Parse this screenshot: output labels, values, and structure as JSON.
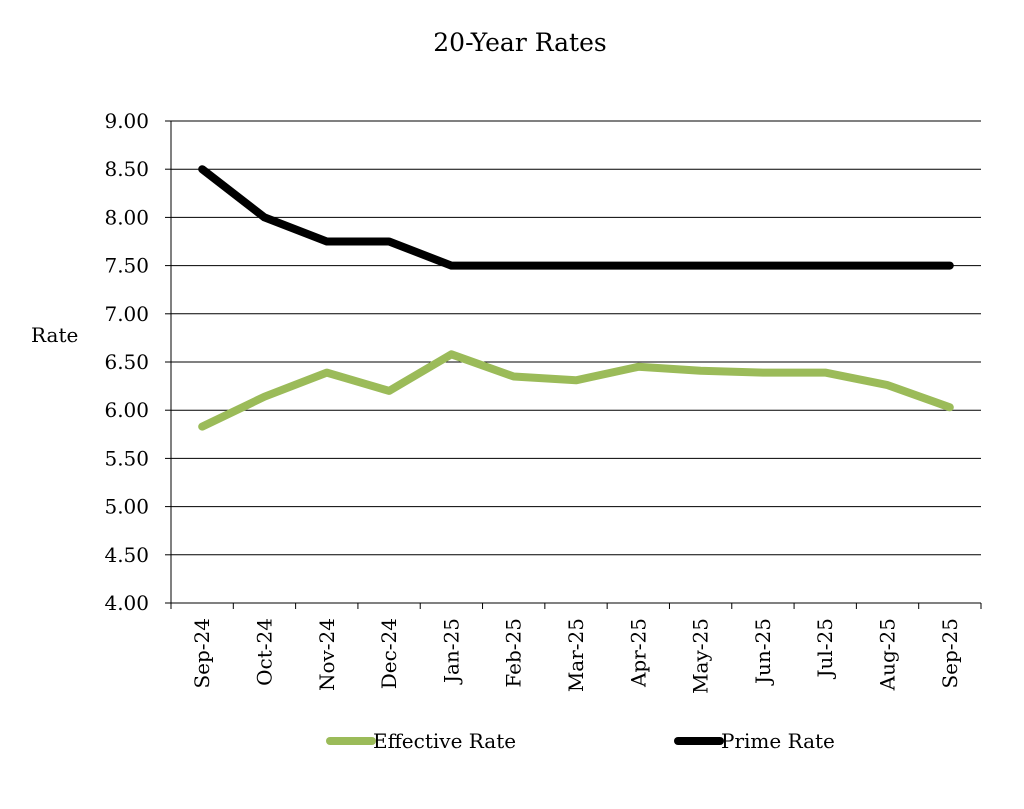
{
  "chart_data": {
    "type": "line",
    "title": "20-Year Rates",
    "xlabel": "",
    "ylabel": "Rate",
    "categories": [
      "Sep-24",
      "Oct-24",
      "Nov-24",
      "Dec-24",
      "Jan-25",
      "Feb-25",
      "Mar-25",
      "Apr-25",
      "May-25",
      "Jun-25",
      "Jul-25",
      "Aug-25",
      "Sep-25"
    ],
    "ylim": [
      4.0,
      9.0
    ],
    "yticks": [
      "4.00",
      "4.50",
      "5.00",
      "5.50",
      "6.00",
      "6.50",
      "7.00",
      "7.50",
      "8.00",
      "8.50",
      "9.00"
    ],
    "grid": true,
    "legend_position": "bottom",
    "series": [
      {
        "name": "Effective Rate",
        "color": "#9BBB59",
        "values": [
          5.83,
          6.14,
          6.39,
          6.2,
          6.58,
          6.35,
          6.31,
          6.45,
          6.41,
          6.39,
          6.39,
          6.26,
          6.03
        ]
      },
      {
        "name": "Prime Rate",
        "color": "#000000",
        "values": [
          8.5,
          8.0,
          7.75,
          7.75,
          7.5,
          7.5,
          7.5,
          7.5,
          7.5,
          7.5,
          7.5,
          7.5,
          7.5
        ]
      }
    ]
  }
}
